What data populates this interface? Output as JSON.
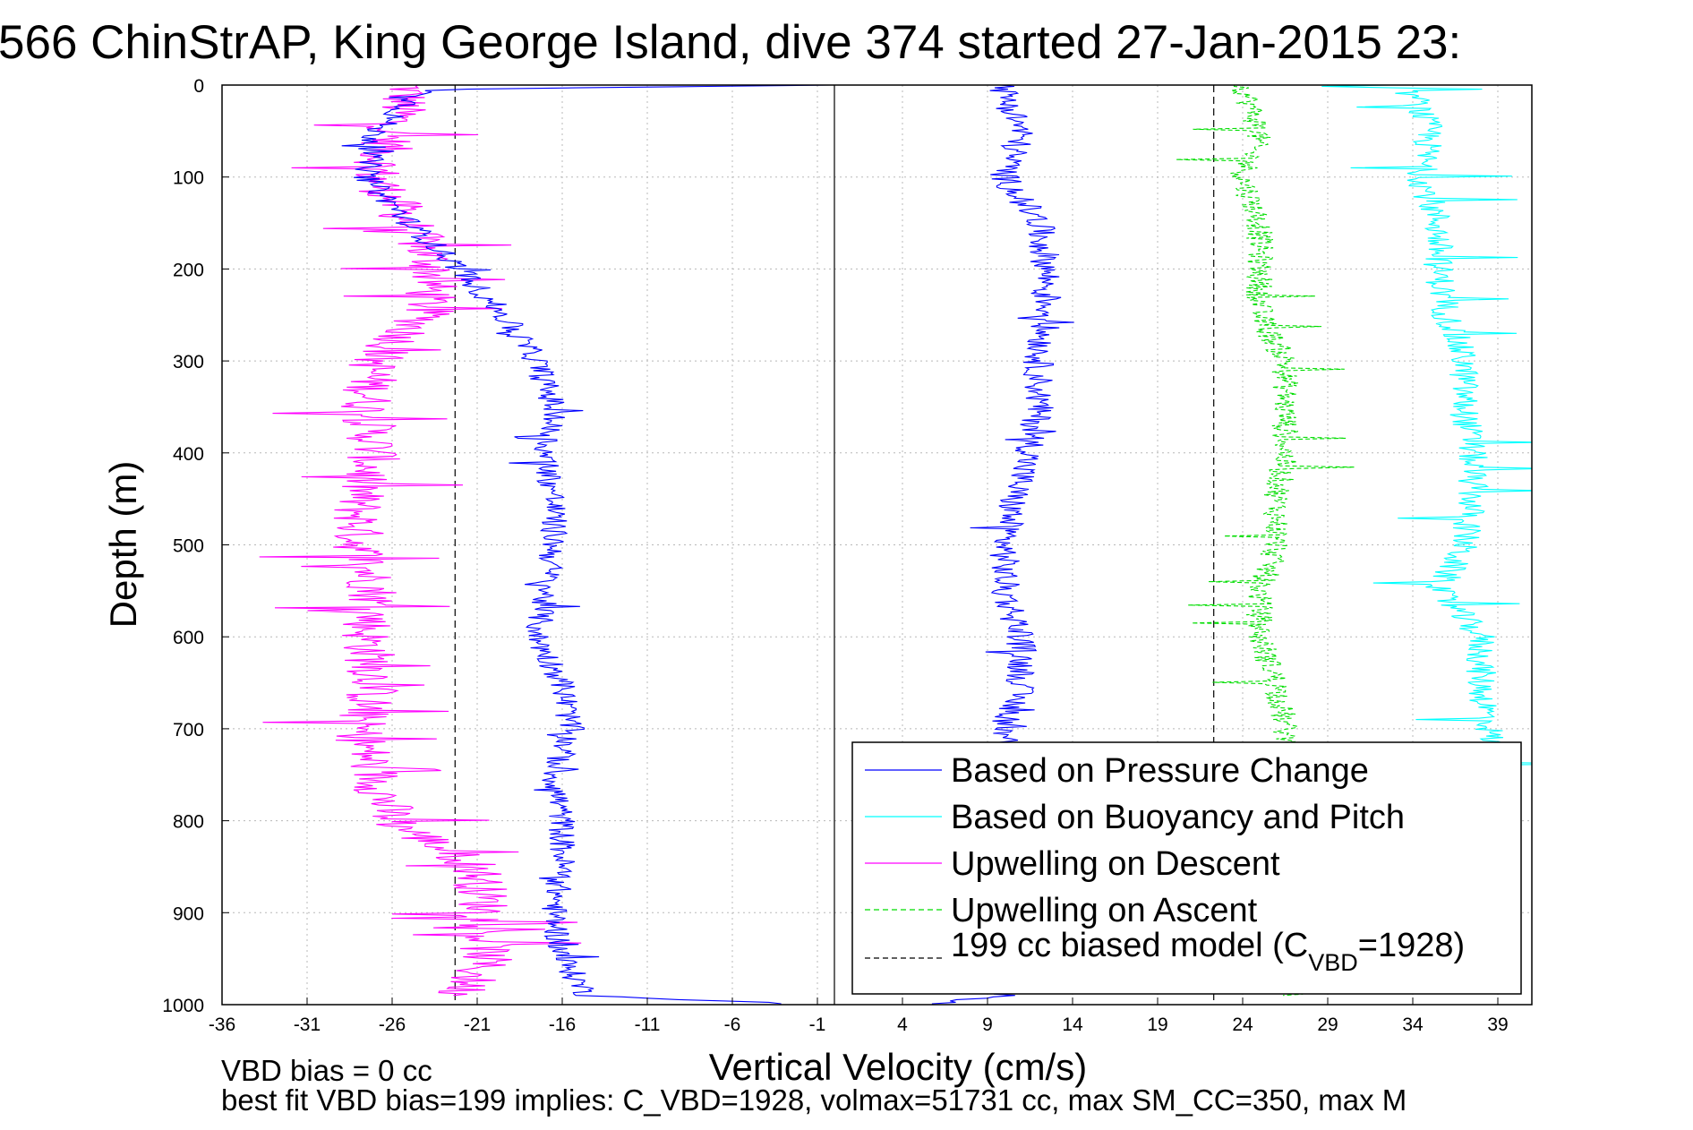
{
  "chart_data": {
    "type": "line",
    "title": "566 ChinStrAP, King George Island, dive 374 started 27-Jan-2015 23:",
    "xlabel": "Vertical Velocity (cm/s)",
    "ylabel": "Depth (m)",
    "xlim": [
      -36,
      41
    ],
    "ylim": [
      1000,
      0
    ],
    "y_reversed": true,
    "grid": true,
    "xticks": [
      "-36",
      "-31",
      "-26",
      "-21",
      "-16",
      "-11",
      "-6",
      "-1",
      "4",
      "9",
      "14",
      "19",
      "24",
      "29",
      "34",
      "39"
    ],
    "yticks": [
      "0",
      "100",
      "200",
      "300",
      "400",
      "500",
      "600",
      "700",
      "800",
      "900",
      "1000"
    ],
    "legend_position": "bottom-right",
    "legend": [
      "Based on Pressure Change",
      "Based on Buoyancy and Pitch",
      "Upwelling on Descent",
      "Upwelling on Ascent",
      "199 cc biased model (C",
      "VBD",
      "=1928)"
    ],
    "series": [
      {
        "name": "Based on Pressure Change",
        "color": "#0000ff",
        "style": "solid",
        "descent": {
          "depth": [
            0,
            5,
            50,
            100,
            150,
            200,
            250,
            300,
            350,
            400,
            450,
            500,
            550,
            600,
            650,
            700,
            750,
            800,
            850,
            900,
            950,
            990,
            1000
          ],
          "velocity": [
            -0.5,
            -24,
            -27,
            -27.5,
            -25,
            -22,
            -19.5,
            -17.5,
            -16.5,
            -17,
            -16.5,
            -16.5,
            -17,
            -17.5,
            -16,
            -15.5,
            -16.5,
            -16,
            -16,
            -16.5,
            -16,
            -14.5,
            -1
          ]
        },
        "ascent": {
          "depth": [
            1000,
            990,
            950,
            900,
            850,
            800,
            750,
            700,
            650,
            600,
            550,
            500,
            450,
            400,
            350,
            300,
            250,
            200,
            150,
            100,
            50,
            10,
            0
          ],
          "velocity": [
            5,
            10,
            10.5,
            10,
            10.5,
            10.5,
            10.5,
            10,
            11,
            11,
            10,
            10,
            10.5,
            11.5,
            12,
            12,
            12.5,
            12.5,
            12,
            10,
            11,
            10,
            10
          ]
        }
      },
      {
        "name": "Based on Buoyancy and Pitch",
        "color": "#00ffff",
        "style": "solid",
        "depth": [
          0,
          10,
          50,
          100,
          150,
          200,
          250,
          300,
          350,
          400,
          450,
          500,
          550,
          600,
          650,
          700,
          750,
          800
        ],
        "velocity": [
          32,
          34,
          35,
          34.5,
          35.5,
          35.5,
          36,
          37,
          37,
          37.5,
          37.5,
          37,
          35.5,
          38,
          38,
          38.5,
          39,
          39
        ]
      },
      {
        "name": "Upwelling on Descent",
        "color": "#ff00ff",
        "style": "solid",
        "depth": [
          0,
          50,
          100,
          150,
          200,
          250,
          300,
          350,
          400,
          450,
          500,
          550,
          600,
          650,
          700,
          750,
          800,
          850,
          900,
          950,
          990
        ],
        "velocity": [
          -25,
          -26,
          -27,
          -25,
          -23.5,
          -24,
          -27,
          -27.5,
          -27,
          -28,
          -28,
          -27,
          -27.5,
          -27,
          -28,
          -27,
          -26,
          -21,
          -20.5,
          -20.5,
          -22
        ]
      },
      {
        "name": "Upwelling on Ascent",
        "color": "#00dd00",
        "style": "dashed",
        "depth": [
          0,
          50,
          100,
          150,
          200,
          250,
          300,
          350,
          400,
          450,
          500,
          550,
          600,
          650,
          700,
          750,
          800,
          850,
          900,
          950,
          990
        ],
        "velocity": [
          24,
          25,
          24,
          25,
          25,
          25,
          26.5,
          26.5,
          26.5,
          26,
          26,
          25,
          25,
          26,
          26.5,
          27,
          27,
          27,
          27,
          27,
          27
        ]
      },
      {
        "name": "199 cc biased model (C_VBD=1928)",
        "color": "#000000",
        "style": "dashed",
        "vertical_lines": [
          -22.3,
          22.3
        ]
      }
    ],
    "footer_lines": [
      "VBD bias = 0 cc",
      "best fit VBD bias=199 implies: C_VBD=1928, volmax=51731 cc, max SM_CC=350, max M"
    ]
  }
}
